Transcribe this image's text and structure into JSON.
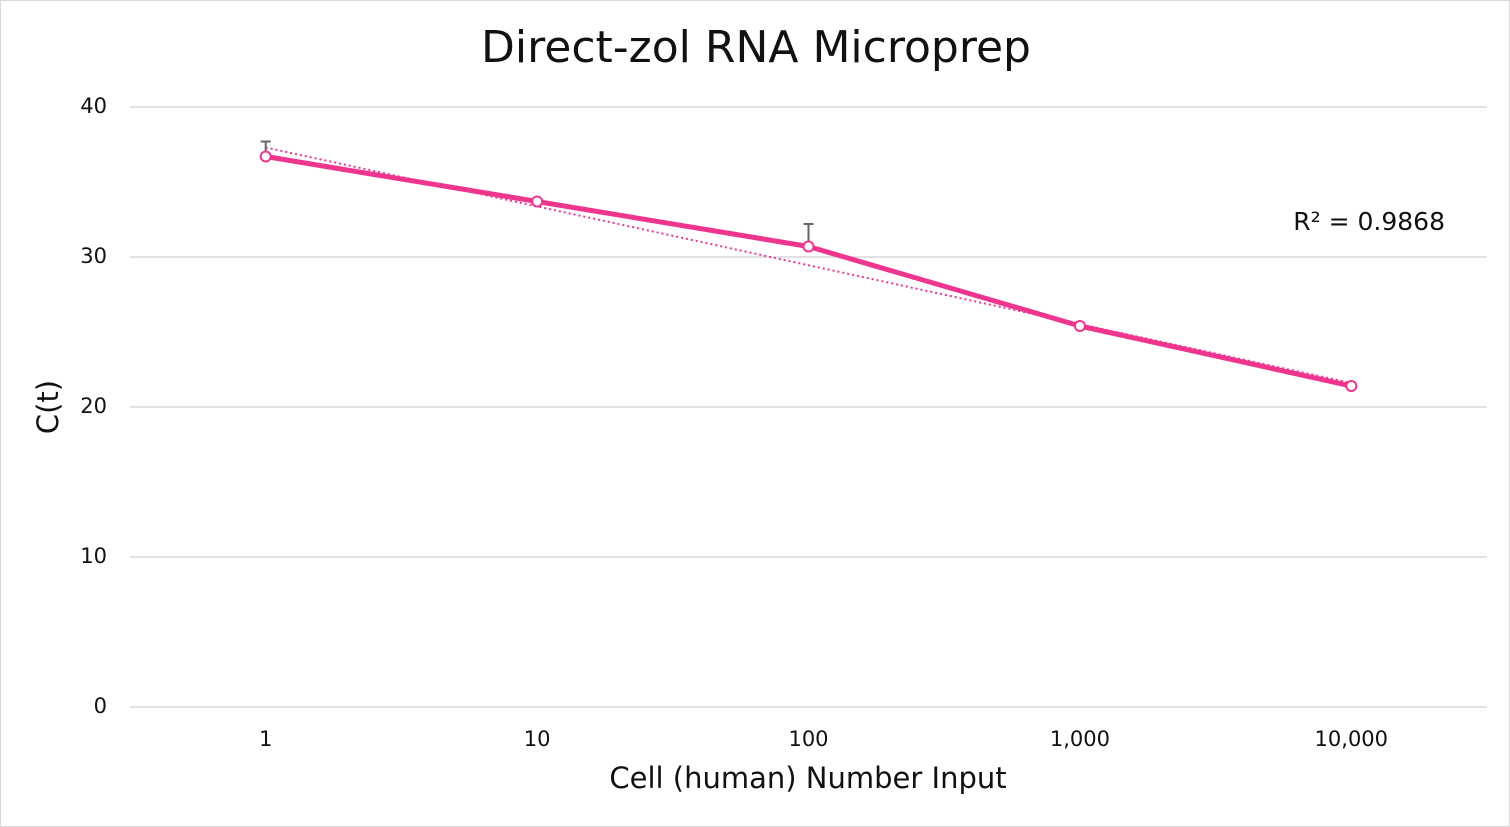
{
  "chart_data": {
    "type": "line",
    "title": "Direct-zol RNA Microprep",
    "x_label": "Cell (human) Number Input",
    "y_label": "C(t)",
    "categories": [
      "1",
      "10",
      "100",
      "1,000",
      "10,000"
    ],
    "series": [
      {
        "name": "Ct",
        "color": "#f0358f",
        "values": [
          36.7,
          33.7,
          30.7,
          25.4,
          21.4
        ],
        "errors": [
          1.0,
          null,
          1.5,
          null,
          null
        ]
      }
    ],
    "trendline": {
      "start": 37.3,
      "end": 21.6,
      "label": "R² = 0.9868",
      "color": "#f0358f"
    },
    "ylim": [
      0,
      40
    ],
    "yticks": [
      0,
      10,
      20,
      30,
      40
    ],
    "grid": true
  }
}
